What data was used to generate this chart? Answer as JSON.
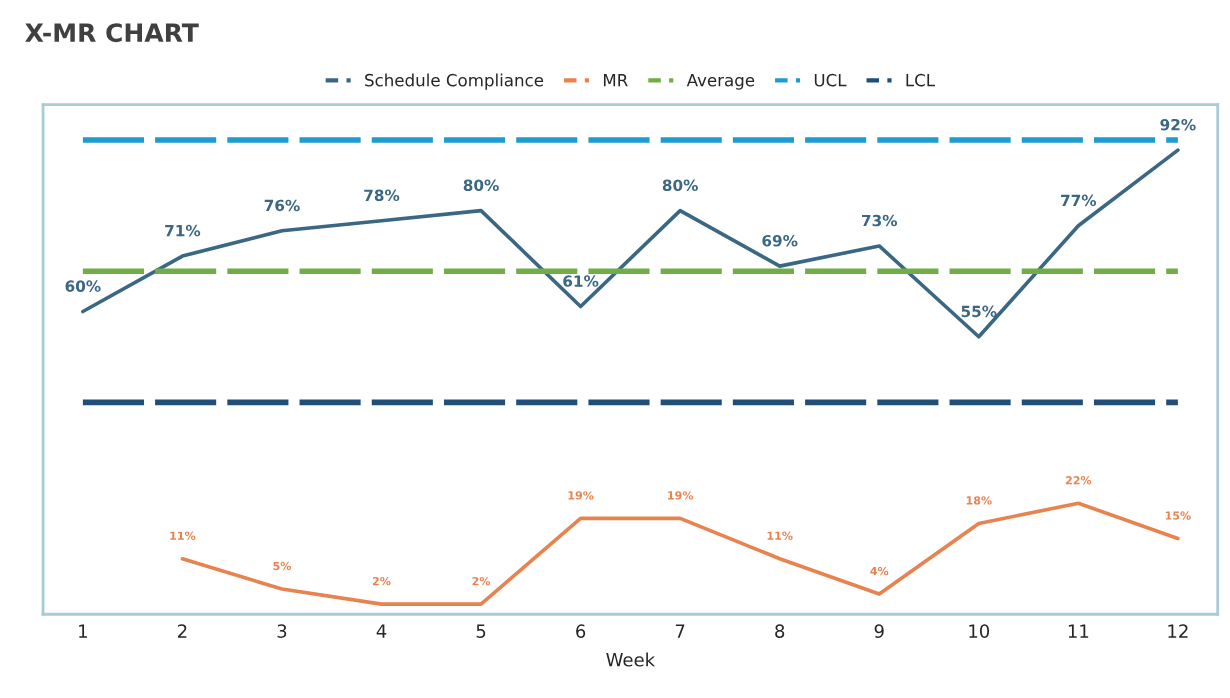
{
  "chart_data": {
    "type": "line",
    "title": "X-MR CHART",
    "xlabel": "Week",
    "categories": [
      "1",
      "2",
      "3",
      "4",
      "5",
      "6",
      "7",
      "8",
      "9",
      "10",
      "11",
      "12"
    ],
    "series": [
      {
        "name": "Schedule Compliance",
        "color": "#3a6783",
        "values": [
          60,
          71,
          76,
          78,
          80,
          61,
          80,
          69,
          73,
          55,
          77,
          92
        ],
        "value_labels": [
          "60%",
          "71%",
          "76%",
          "78%",
          "80%",
          "61%",
          "80%",
          "69%",
          "73%",
          "55%",
          "77%",
          "92%"
        ],
        "line_style": "solid"
      },
      {
        "name": "MR",
        "color": "#e8834f",
        "values": [
          null,
          11,
          5,
          2,
          2,
          19,
          19,
          11,
          4,
          18,
          22,
          15
        ],
        "value_labels": [
          null,
          "11%",
          "5%",
          "2%",
          "2%",
          "19%",
          "19%",
          "11%",
          "4%",
          "18%",
          "22%",
          "15%"
        ],
        "line_style": "solid"
      },
      {
        "name": "Average",
        "color": "#70ad47",
        "values": [
          68,
          68,
          68,
          68,
          68,
          68,
          68,
          68,
          68,
          68,
          68,
          68
        ],
        "line_style": "dashed"
      },
      {
        "name": "UCL",
        "color": "#1f9bcf",
        "values": [
          94,
          94,
          94,
          94,
          94,
          94,
          94,
          94,
          94,
          94,
          94,
          94
        ],
        "line_style": "dashed"
      },
      {
        "name": "LCL",
        "color": "#1f4e79",
        "values": [
          42,
          42,
          42,
          42,
          42,
          42,
          42,
          42,
          42,
          42,
          42,
          42
        ],
        "line_style": "dashed"
      }
    ],
    "ylim": [
      0,
      101
    ],
    "tick_labels": "x",
    "grid": false,
    "legend": "top",
    "marker": "none"
  }
}
